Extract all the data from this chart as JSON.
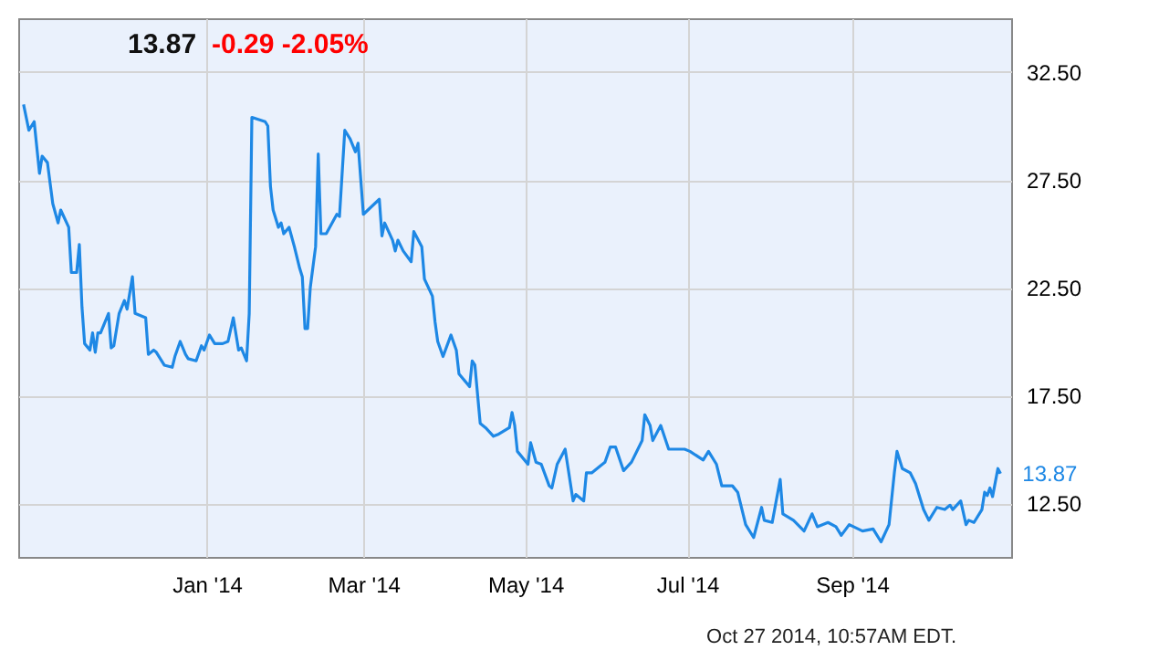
{
  "chart_data": {
    "type": "line",
    "title": "13.87",
    "subtitle": "-0.29  -2.05%",
    "annotations": [
      {
        "text": "13.87",
        "x": "2014-10-27",
        "y": 13.87
      },
      "Oct 27 2014, 10:57AM EDT."
    ],
    "x": [
      "2013-10-24",
      "2013-10-26",
      "2013-10-28",
      "2013-10-30",
      "2013-10-31",
      "2013-11-02",
      "2013-11-04",
      "2013-11-06",
      "2013-11-07",
      "2013-11-10",
      "2013-11-11",
      "2013-11-13",
      "2013-11-14",
      "2013-11-15",
      "2013-11-16",
      "2013-11-18",
      "2013-11-19",
      "2013-11-20",
      "2013-11-21",
      "2013-11-22",
      "2013-11-25",
      "2013-11-26",
      "2013-11-27",
      "2013-11-29",
      "2013-12-01",
      "2013-12-02",
      "2013-12-04",
      "2013-12-05",
      "2013-12-09",
      "2013-12-10",
      "2013-12-12",
      "2013-12-13",
      "2013-12-16",
      "2013-12-19",
      "2013-12-20",
      "2013-12-22",
      "2013-12-24",
      "2013-12-25",
      "2013-12-28",
      "2013-12-30",
      "2013-12-31",
      "2014-01-02",
      "2014-01-04",
      "2014-01-07",
      "2014-01-09",
      "2014-01-11",
      "2014-01-13",
      "2014-01-14",
      "2014-01-16",
      "2014-01-17",
      "2014-01-18",
      "2014-01-23",
      "2014-01-24",
      "2014-01-25",
      "2014-01-26",
      "2014-01-28",
      "2014-01-29",
      "2014-01-30",
      "2014-02-01",
      "2014-02-03",
      "2014-02-05",
      "2014-02-06",
      "2014-02-07",
      "2014-02-08",
      "2014-02-09",
      "2014-02-11",
      "2014-02-12",
      "2014-02-13",
      "2014-02-15",
      "2014-02-19",
      "2014-02-20",
      "2014-02-22",
      "2014-02-24",
      "2014-02-26",
      "2014-02-27",
      "2014-03-01",
      "2014-03-07",
      "2014-03-08",
      "2014-03-09",
      "2014-03-12",
      "2014-03-13",
      "2014-03-14",
      "2014-03-16",
      "2014-03-19",
      "2014-03-20",
      "2014-03-23",
      "2014-03-24",
      "2014-03-27",
      "2014-03-28",
      "2014-03-29",
      "2014-03-31",
      "2014-04-03",
      "2014-04-05",
      "2014-04-06",
      "2014-04-10",
      "2014-04-11",
      "2014-04-12",
      "2014-04-14",
      "2014-04-16",
      "2014-04-19",
      "2014-04-21",
      "2014-04-25",
      "2014-04-26",
      "2014-04-27",
      "2014-04-28",
      "2014-05-02",
      "2014-05-03",
      "2014-05-05",
      "2014-05-07",
      "2014-05-10",
      "2014-05-11",
      "2014-05-13",
      "2014-05-16",
      "2014-05-19",
      "2014-05-20",
      "2014-05-23",
      "2014-05-24",
      "2014-05-26",
      "2014-05-31",
      "2014-06-02",
      "2014-06-04",
      "2014-06-07",
      "2014-06-10",
      "2014-06-14",
      "2014-06-15",
      "2014-06-17",
      "2014-06-18",
      "2014-06-21",
      "2014-06-24",
      "2014-06-28",
      "2014-06-30",
      "2014-07-02",
      "2014-07-07",
      "2014-07-09",
      "2014-07-12",
      "2014-07-14",
      "2014-07-18",
      "2014-07-20",
      "2014-07-23",
      "2014-07-26",
      "2014-07-29",
      "2014-07-30",
      "2014-08-02",
      "2014-08-05",
      "2014-08-06",
      "2014-08-10",
      "2014-08-14",
      "2014-08-17",
      "2014-08-19",
      "2014-08-23",
      "2014-08-26",
      "2014-08-28",
      "2014-08-31",
      "2014-09-05",
      "2014-09-09",
      "2014-09-12",
      "2014-09-15",
      "2014-09-17",
      "2014-09-18",
      "2014-09-20",
      "2014-09-23",
      "2014-09-25",
      "2014-09-28",
      "2014-09-30",
      "2014-10-03",
      "2014-10-06",
      "2014-10-08",
      "2014-10-09",
      "2014-10-12",
      "2014-10-14",
      "2014-10-15",
      "2014-10-17",
      "2014-10-20",
      "2014-10-21",
      "2014-10-22",
      "2014-10-23",
      "2014-10-24",
      "2014-10-26",
      "2014-10-27"
    ],
    "series": [
      {
        "color": "#1e88e5",
        "values": [
          31.0,
          29.8,
          30.2,
          27.8,
          28.6,
          28.3,
          26.4,
          25.5,
          26.1,
          25.3,
          23.2,
          23.2,
          24.5,
          21.6,
          19.9,
          19.6,
          20.4,
          19.5,
          20.4,
          20.4,
          21.3,
          19.7,
          19.8,
          21.3,
          21.9,
          21.5,
          23.0,
          21.3,
          21.1,
          19.4,
          19.6,
          19.5,
          18.9,
          18.8,
          19.3,
          20.0,
          19.4,
          19.2,
          19.1,
          19.8,
          19.6,
          20.3,
          19.9,
          19.9,
          20.0,
          21.1,
          19.6,
          19.7,
          19.1,
          21.3,
          30.4,
          30.2,
          30.0,
          27.2,
          26.1,
          25.3,
          25.5,
          25.0,
          25.3,
          24.4,
          23.4,
          23.0,
          20.6,
          20.6,
          22.5,
          24.4,
          28.7,
          25.0,
          25.0,
          25.9,
          25.8,
          29.8,
          29.4,
          28.8,
          29.2,
          25.9,
          26.6,
          24.9,
          25.5,
          24.7,
          24.2,
          24.7,
          24.2,
          23.7,
          25.1,
          24.4,
          22.9,
          22.1,
          20.9,
          20.0,
          19.3,
          20.3,
          19.6,
          18.5,
          17.9,
          19.1,
          18.9,
          16.2,
          16.0,
          15.6,
          15.7,
          16.0,
          16.7,
          16.1,
          14.9,
          14.3,
          15.3,
          14.4,
          14.3,
          13.3,
          13.2,
          14.3,
          15.0,
          12.6,
          12.9,
          12.6,
          13.9,
          13.9,
          14.4,
          15.1,
          15.1,
          14.0,
          14.4,
          15.4,
          16.6,
          16.1,
          15.4,
          16.1,
          15.0,
          15.0,
          15.0,
          14.9,
          14.5,
          14.9,
          14.3,
          13.3,
          13.3,
          13.0,
          11.5,
          10.9,
          12.3,
          11.7,
          11.6,
          13.6,
          12.0,
          11.7,
          11.2,
          12.0,
          11.4,
          11.6,
          11.4,
          11.0,
          11.5,
          11.2,
          11.3,
          10.7,
          11.5,
          13.9,
          14.9,
          14.1,
          13.9,
          13.4,
          12.2,
          11.7,
          12.3,
          12.2,
          12.4,
          12.2,
          12.6,
          11.5,
          11.7,
          11.6,
          12.2,
          13.0,
          12.85,
          13.2,
          12.8,
          14.1,
          13.87
        ]
      }
    ],
    "xlim": [
      "2013-10-22",
      "2014-10-31"
    ],
    "xticks": [
      {
        "value": "2014-01-01",
        "label": "Jan '14"
      },
      {
        "value": "2014-03-01",
        "label": "Mar '14"
      },
      {
        "value": "2014-05-01",
        "label": "May '14"
      },
      {
        "value": "2014-07-01",
        "label": "Jul '14"
      },
      {
        "value": "2014-09-01",
        "label": "Sep '14"
      }
    ],
    "ylim": [
      10,
      35
    ],
    "yticks": [
      {
        "value": 12.5,
        "label": "12.50"
      },
      {
        "value": 17.5,
        "label": "17.50"
      },
      {
        "value": 22.5,
        "label": "22.50"
      },
      {
        "value": 27.5,
        "label": "27.50"
      },
      {
        "value": 32.5,
        "label": "32.50"
      }
    ],
    "grid": true,
    "marker": "none",
    "line_style": "solid"
  }
}
